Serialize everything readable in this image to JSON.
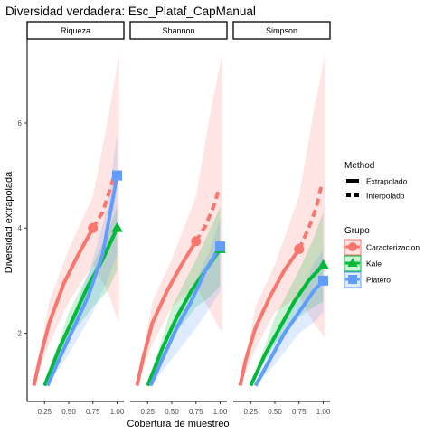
{
  "chart_data": {
    "type": "line",
    "title": "Diversidad verdadera: Esc_Plataf_CapManual",
    "xlabel": "Cobertura de muestreo",
    "ylabel": "Diversidad extrapolada",
    "xlim": [
      0.07,
      1.07
    ],
    "ylim": [
      0.7,
      7.6
    ],
    "x_ticks": [
      "0.25",
      "0.50",
      "0.75",
      "1.00"
    ],
    "y_ticks": [
      "2",
      "4",
      "6"
    ],
    "x_tick_values": [
      0.25,
      0.5,
      0.75,
      1.0
    ],
    "y_tick_values": [
      2,
      4,
      6
    ],
    "grid": false,
    "legend_position": "right",
    "panels": [
      {
        "name": "Riqueza",
        "series": [
          {
            "group": "Caracterizacion",
            "color": "#F8766D",
            "marker": "circle",
            "interp": [
              [
                0.14,
                1.0
              ],
              [
                0.2,
                1.5
              ],
              [
                0.3,
                2.2
              ],
              [
                0.45,
                2.95
              ],
              [
                0.6,
                3.5
              ],
              [
                0.75,
                4.0
              ]
            ],
            "extrap": [
              [
                0.75,
                4.0
              ],
              [
                0.85,
                4.3
              ],
              [
                0.93,
                4.75
              ],
              [
                0.97,
                5.0
              ]
            ],
            "ribbon_upper": [
              [
                0.14,
                1.0
              ],
              [
                0.3,
                2.6
              ],
              [
                0.5,
                3.6
              ],
              [
                0.75,
                4.6
              ],
              [
                0.9,
                6.0
              ],
              [
                1.02,
                7.3
              ]
            ],
            "ribbon_lower": [
              [
                0.14,
                1.0
              ],
              [
                0.3,
                1.8
              ],
              [
                0.5,
                2.6
              ],
              [
                0.75,
                3.3
              ],
              [
                0.9,
                2.8
              ],
              [
                1.02,
                2.2
              ]
            ],
            "ref_point": [
              0.75,
              4.0
            ]
          },
          {
            "group": "Kale",
            "color": "#00BA38",
            "marker": "triangle",
            "interp": [
              [
                0.25,
                1.0
              ],
              [
                0.4,
                1.7
              ],
              [
                0.55,
                2.3
              ],
              [
                0.7,
                2.9
              ],
              [
                0.85,
                3.4
              ],
              [
                1.0,
                4.0
              ]
            ],
            "extrap": [],
            "ribbon_upper": [
              [
                0.25,
                1.0
              ],
              [
                0.5,
                2.4
              ],
              [
                0.75,
                3.3
              ],
              [
                0.9,
                3.9
              ],
              [
                1.0,
                4.4
              ]
            ],
            "ribbon_lower": [
              [
                0.25,
                1.0
              ],
              [
                0.5,
                1.9
              ],
              [
                0.75,
                2.5
              ],
              [
                0.9,
                2.8
              ],
              [
                1.0,
                3.2
              ]
            ],
            "ref_point": [
              1.0,
              4.0
            ]
          },
          {
            "group": "Platero",
            "color": "#619CFF",
            "marker": "square",
            "interp": [
              [
                0.28,
                1.0
              ],
              [
                0.4,
                1.5
              ],
              [
                0.55,
                2.1
              ],
              [
                0.7,
                2.7
              ],
              [
                0.85,
                3.5
              ],
              [
                1.0,
                5.0
              ]
            ],
            "extrap": [],
            "ribbon_upper": [
              [
                0.28,
                1.0
              ],
              [
                0.5,
                2.1
              ],
              [
                0.75,
                3.4
              ],
              [
                0.9,
                4.4
              ],
              [
                1.0,
                5.8
              ]
            ],
            "ribbon_lower": [
              [
                0.28,
                1.0
              ],
              [
                0.5,
                1.6
              ],
              [
                0.75,
                2.4
              ],
              [
                0.9,
                3.0
              ],
              [
                1.0,
                3.5
              ]
            ],
            "ref_point": [
              1.0,
              5.0
            ]
          }
        ]
      },
      {
        "name": "Shannon",
        "series": [
          {
            "group": "Caracterizacion",
            "color": "#F8766D",
            "marker": "circle",
            "interp": [
              [
                0.14,
                1.0
              ],
              [
                0.2,
                1.5
              ],
              [
                0.3,
                2.2
              ],
              [
                0.45,
                2.8
              ],
              [
                0.6,
                3.3
              ],
              [
                0.75,
                3.75
              ]
            ],
            "extrap": [
              [
                0.75,
                3.75
              ],
              [
                0.85,
                4.05
              ],
              [
                0.93,
                4.4
              ],
              [
                0.98,
                4.7
              ]
            ],
            "ribbon_upper": [
              [
                0.14,
                1.0
              ],
              [
                0.3,
                2.6
              ],
              [
                0.5,
                3.4
              ],
              [
                0.75,
                4.6
              ],
              [
                0.9,
                6.2
              ],
              [
                1.02,
                7.3
              ]
            ],
            "ribbon_lower": [
              [
                0.14,
                1.0
              ],
              [
                0.3,
                1.8
              ],
              [
                0.5,
                2.5
              ],
              [
                0.75,
                2.9
              ],
              [
                0.9,
                2.4
              ],
              [
                1.02,
                2.0
              ]
            ],
            "ref_point": [
              0.75,
              3.75
            ]
          },
          {
            "group": "Kale",
            "color": "#00BA38",
            "marker": "triangle",
            "interp": [
              [
                0.25,
                1.0
              ],
              [
                0.4,
                1.7
              ],
              [
                0.55,
                2.3
              ],
              [
                0.7,
                2.8
              ],
              [
                0.85,
                3.2
              ],
              [
                1.0,
                3.6
              ]
            ],
            "extrap": [],
            "ribbon_upper": [
              [
                0.25,
                1.0
              ],
              [
                0.5,
                2.5
              ],
              [
                0.75,
                3.4
              ],
              [
                0.9,
                4.0
              ],
              [
                1.0,
                4.4
              ]
            ],
            "ribbon_lower": [
              [
                0.25,
                1.0
              ],
              [
                0.5,
                1.9
              ],
              [
                0.75,
                2.5
              ],
              [
                0.9,
                2.7
              ],
              [
                1.0,
                2.9
              ]
            ],
            "ref_point": [
              1.0,
              3.6
            ]
          },
          {
            "group": "Platero",
            "color": "#619CFF",
            "marker": "square",
            "interp": [
              [
                0.28,
                1.0
              ],
              [
                0.4,
                1.5
              ],
              [
                0.55,
                2.1
              ],
              [
                0.7,
                2.6
              ],
              [
                0.85,
                3.2
              ],
              [
                1.0,
                3.65
              ]
            ],
            "extrap": [],
            "ribbon_upper": [
              [
                0.28,
                1.0
              ],
              [
                0.5,
                2.0
              ],
              [
                0.75,
                3.0
              ],
              [
                0.9,
                3.6
              ],
              [
                1.0,
                4.2
              ]
            ],
            "ribbon_lower": [
              [
                0.28,
                1.0
              ],
              [
                0.5,
                1.5
              ],
              [
                0.75,
                2.1
              ],
              [
                0.9,
                2.5
              ],
              [
                1.0,
                2.8
              ]
            ],
            "ref_point": [
              1.0,
              3.65
            ]
          }
        ]
      },
      {
        "name": "Simpson",
        "series": [
          {
            "group": "Caracterizacion",
            "color": "#F8766D",
            "marker": "circle",
            "interp": [
              [
                0.14,
                1.0
              ],
              [
                0.2,
                1.5
              ],
              [
                0.3,
                2.1
              ],
              [
                0.45,
                2.7
              ],
              [
                0.6,
                3.2
              ],
              [
                0.75,
                3.6
              ]
            ],
            "extrap": [
              [
                0.75,
                3.6
              ],
              [
                0.85,
                4.0
              ],
              [
                0.93,
                4.4
              ],
              [
                0.98,
                4.8
              ]
            ],
            "ribbon_upper": [
              [
                0.14,
                1.0
              ],
              [
                0.3,
                2.5
              ],
              [
                0.5,
                3.3
              ],
              [
                0.75,
                4.6
              ],
              [
                0.9,
                6.2
              ],
              [
                1.02,
                7.3
              ]
            ],
            "ribbon_lower": [
              [
                0.14,
                1.0
              ],
              [
                0.3,
                1.7
              ],
              [
                0.5,
                2.4
              ],
              [
                0.75,
                2.7
              ],
              [
                0.9,
                2.2
              ],
              [
                1.02,
                1.9
              ]
            ],
            "ref_point": [
              0.75,
              3.6
            ]
          },
          {
            "group": "Kale",
            "color": "#00BA38",
            "marker": "triangle",
            "interp": [
              [
                0.25,
                1.0
              ],
              [
                0.4,
                1.6
              ],
              [
                0.55,
                2.1
              ],
              [
                0.7,
                2.6
              ],
              [
                0.85,
                3.0
              ],
              [
                1.0,
                3.3
              ]
            ],
            "extrap": [],
            "ribbon_upper": [
              [
                0.25,
                1.0
              ],
              [
                0.5,
                2.3
              ],
              [
                0.75,
                3.2
              ],
              [
                0.9,
                3.8
              ],
              [
                1.0,
                4.3
              ]
            ],
            "ribbon_lower": [
              [
                0.25,
                1.0
              ],
              [
                0.5,
                1.8
              ],
              [
                0.75,
                2.3
              ],
              [
                0.9,
                2.5
              ],
              [
                1.0,
                2.6
              ]
            ],
            "ref_point": [
              1.0,
              3.3
            ]
          },
          {
            "group": "Platero",
            "color": "#619CFF",
            "marker": "square",
            "interp": [
              [
                0.3,
                1.0
              ],
              [
                0.45,
                1.5
              ],
              [
                0.6,
                2.0
              ],
              [
                0.75,
                2.4
              ],
              [
                0.9,
                2.8
              ],
              [
                1.0,
                3.0
              ]
            ],
            "extrap": [],
            "ribbon_upper": [
              [
                0.3,
                1.0
              ],
              [
                0.5,
                1.9
              ],
              [
                0.75,
                2.7
              ],
              [
                0.9,
                3.3
              ],
              [
                1.0,
                3.6
              ]
            ],
            "ribbon_lower": [
              [
                0.3,
                1.0
              ],
              [
                0.5,
                1.4
              ],
              [
                0.75,
                2.0
              ],
              [
                0.9,
                2.2
              ],
              [
                1.0,
                2.4
              ]
            ],
            "ref_point": [
              1.0,
              3.0
            ]
          }
        ]
      }
    ],
    "legend": {
      "method_title": "Method",
      "method_items": [
        "Extrapolado",
        "Interpolado"
      ],
      "group_title": "Grupo",
      "group_items": [
        {
          "label": "Caracterizacion",
          "color": "#F8766D",
          "marker": "circle"
        },
        {
          "label": "Kale",
          "color": "#00BA38",
          "marker": "triangle"
        },
        {
          "label": "Platero",
          "color": "#619CFF",
          "marker": "square"
        }
      ]
    }
  }
}
